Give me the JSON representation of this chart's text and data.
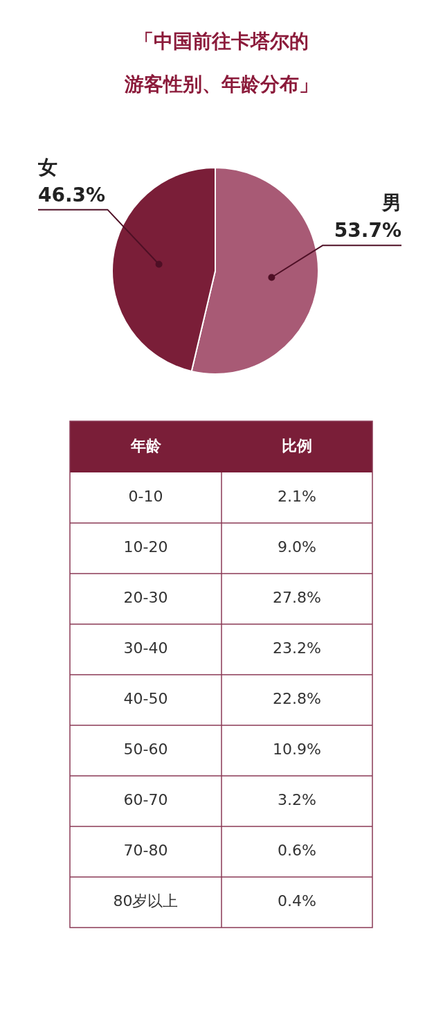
{
  "chart_data": [
    {
      "type": "pie",
      "title": "「中国前往卡塔尔的游客性别、年龄分布」",
      "categories": [
        "男",
        "女"
      ],
      "values": [
        53.7,
        46.3
      ],
      "colors": [
        "#a85a75",
        "#7a1e38"
      ],
      "value_labels": [
        "53.7%",
        "46.3%"
      ]
    },
    {
      "type": "other",
      "xlabel": "年龄",
      "ylabel": "比例",
      "categories": [
        "0-10",
        "10-20",
        "20-30",
        "30-40",
        "40-50",
        "50-60",
        "60-70",
        "70-80",
        "80岁以上"
      ],
      "value_labels": [
        "2.1%",
        "9.0%",
        "27.8%",
        "23.2%",
        "22.8%",
        "10.9%",
        "3.2%",
        "0.6%",
        "0.4%"
      ],
      "color": "#7a1e38"
    }
  ]
}
